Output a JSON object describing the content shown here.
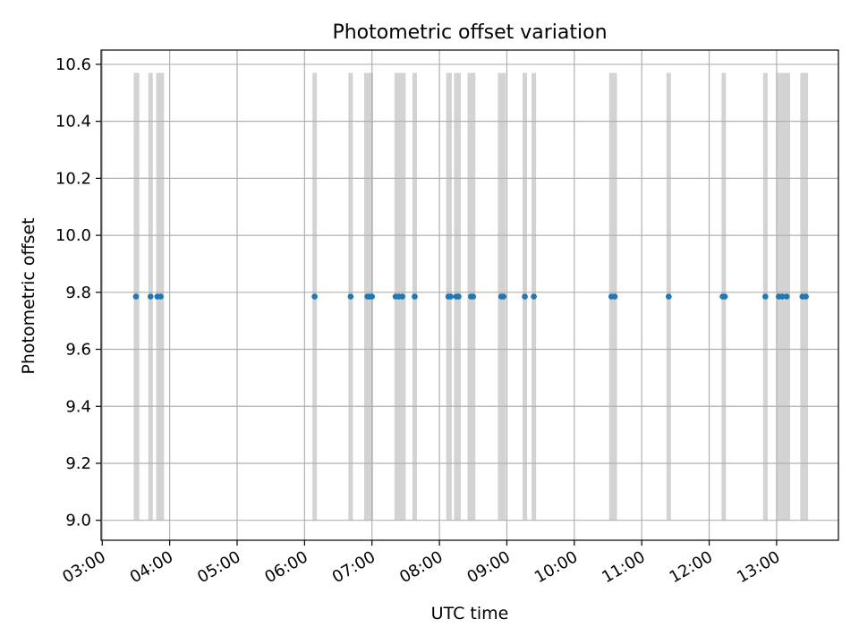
{
  "chart_data": {
    "type": "scatter",
    "title": "Photometric offset variation",
    "xlabel": "UTC time",
    "ylabel": "Photometric offset",
    "xlim": [
      "02:59",
      "13:55"
    ],
    "ylim": [
      8.93,
      10.65
    ],
    "grid": true,
    "x_ticks": [
      "03:00",
      "04:00",
      "05:00",
      "06:00",
      "07:00",
      "08:00",
      "09:00",
      "10:00",
      "11:00",
      "12:00",
      "13:00"
    ],
    "y_ticks": [
      "9.0",
      "9.2",
      "9.4",
      "9.6",
      "9.8",
      "10.0",
      "10.2",
      "10.4",
      "10.6"
    ],
    "band_range": [
      9.0,
      10.57
    ],
    "bands": [
      [
        "03:28",
        "03:33"
      ],
      [
        "03:41",
        "03:45"
      ],
      [
        "03:48",
        "03:55"
      ],
      [
        "06:07",
        "06:11"
      ],
      [
        "06:39",
        "06:43"
      ],
      [
        "06:53",
        "07:01"
      ],
      [
        "07:20",
        "07:30"
      ],
      [
        "07:36",
        "07:40"
      ],
      [
        "08:06",
        "08:11"
      ],
      [
        "08:13",
        "08:19"
      ],
      [
        "08:25",
        "08:32"
      ],
      [
        "08:52",
        "08:59"
      ],
      [
        "09:14",
        "09:18"
      ],
      [
        "09:22",
        "09:26"
      ],
      [
        "10:31",
        "10:38"
      ],
      [
        "11:22",
        "11:26"
      ],
      [
        "12:11",
        "12:15"
      ],
      [
        "12:48",
        "12:52"
      ],
      [
        "13:00",
        "13:12"
      ],
      [
        "13:21",
        "13:28"
      ]
    ],
    "series": [
      {
        "values": [
          {
            "x": "03:30",
            "y": 9.785
          },
          {
            "x": "03:43",
            "y": 9.785
          },
          {
            "x": "03:49",
            "y": 9.785
          },
          {
            "x": "03:52",
            "y": 9.785
          },
          {
            "x": "06:09",
            "y": 9.785
          },
          {
            "x": "06:41",
            "y": 9.785
          },
          {
            "x": "06:56",
            "y": 9.785
          },
          {
            "x": "06:58",
            "y": 9.785
          },
          {
            "x": "07:00",
            "y": 9.785
          },
          {
            "x": "07:21",
            "y": 9.785
          },
          {
            "x": "07:24",
            "y": 9.785
          },
          {
            "x": "07:27",
            "y": 9.785
          },
          {
            "x": "07:38",
            "y": 9.785
          },
          {
            "x": "08:08",
            "y": 9.785
          },
          {
            "x": "08:10",
            "y": 9.785
          },
          {
            "x": "08:15",
            "y": 9.785
          },
          {
            "x": "08:17",
            "y": 9.785
          },
          {
            "x": "08:28",
            "y": 9.785
          },
          {
            "x": "08:30",
            "y": 9.785
          },
          {
            "x": "08:55",
            "y": 9.785
          },
          {
            "x": "08:57",
            "y": 9.785
          },
          {
            "x": "09:16",
            "y": 9.785
          },
          {
            "x": "09:24",
            "y": 9.785
          },
          {
            "x": "10:33",
            "y": 9.785
          },
          {
            "x": "10:36",
            "y": 9.785
          },
          {
            "x": "11:24",
            "y": 9.785
          },
          {
            "x": "12:12",
            "y": 9.785
          },
          {
            "x": "12:14",
            "y": 9.785
          },
          {
            "x": "12:50",
            "y": 9.785
          },
          {
            "x": "13:02",
            "y": 9.785
          },
          {
            "x": "13:05",
            "y": 9.785
          },
          {
            "x": "13:09",
            "y": 9.785
          },
          {
            "x": "13:23",
            "y": 9.785
          },
          {
            "x": "13:26",
            "y": 9.785
          }
        ]
      }
    ],
    "colors": {
      "points": "#1f77b4",
      "bands": "#d3d3d3",
      "grid": "#b0b0b0"
    }
  }
}
